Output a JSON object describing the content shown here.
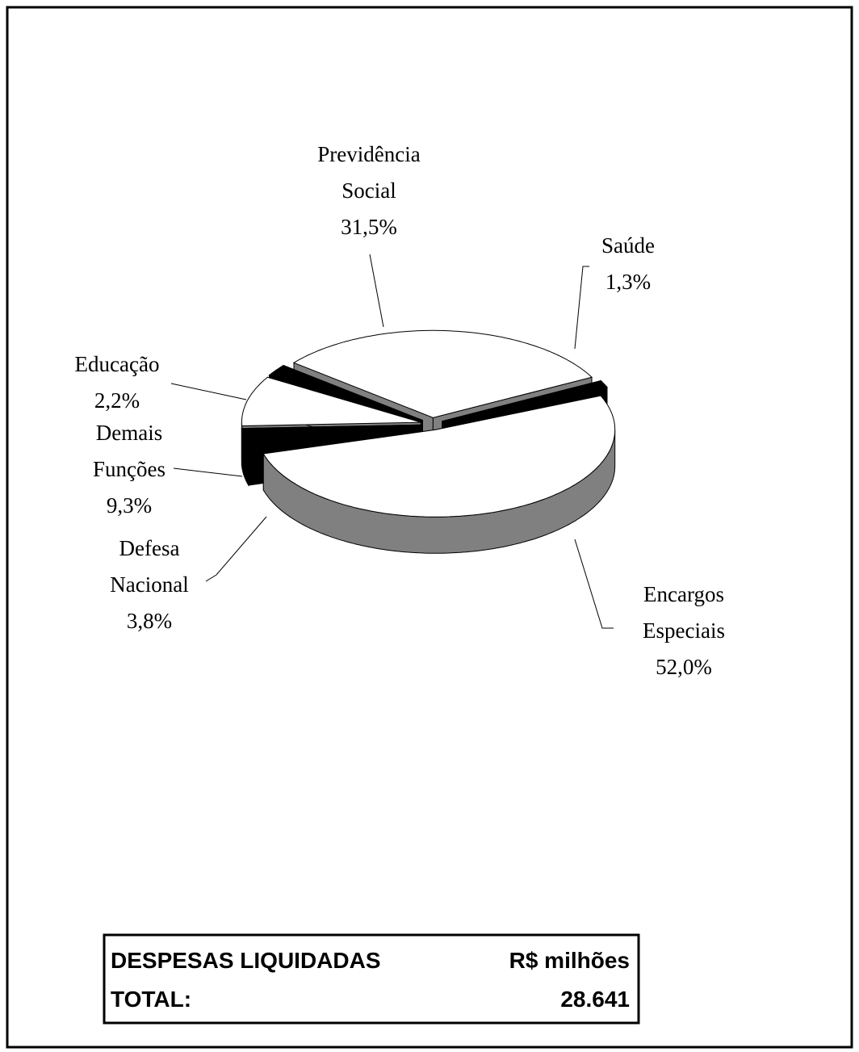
{
  "chart_data": {
    "type": "pie",
    "categories": [
      "Encargos Especiais",
      "Defesa Nacional",
      "Demais Funções",
      "Educação",
      "Previdência Social",
      "Saúde"
    ],
    "values": [
      52.0,
      3.8,
      9.3,
      2.2,
      31.5,
      1.3
    ],
    "value_labels": [
      "52,0%",
      "3,8%",
      "9,3%",
      "2,2%",
      "31,5%",
      "1,3%"
    ],
    "colors": [
      "#ffffff",
      "#000000",
      "#ffffff",
      "#000000",
      "#ffffff",
      "#000000"
    ]
  },
  "total_box": {
    "rows": [
      [
        "DESPESAS LIQUIDADAS",
        "R$ milhões"
      ],
      [
        "TOTAL:",
        "28.641"
      ]
    ]
  }
}
